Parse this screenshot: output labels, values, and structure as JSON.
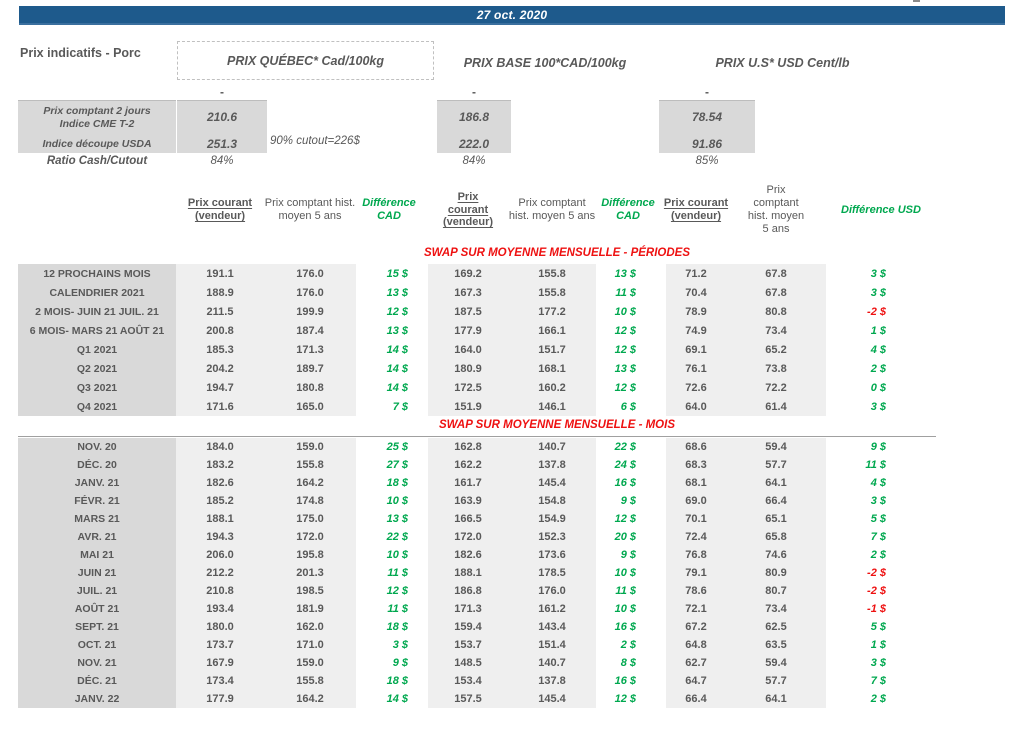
{
  "header": {
    "date": "27 oct. 2020",
    "title": "Prix indicatifs - Porc",
    "group_quebec": "PRIX QUÉBEC* Cad/100kg",
    "group_base": "PRIX BASE 100*CAD/100kg",
    "group_us": "PRIX U.S* USD Cent/lb"
  },
  "colors": {
    "accent_blue": "#1e5a8c",
    "positive_green": "#00a84f",
    "negative_red": "#ee1111",
    "text_gray": "#595959",
    "label_column_gray": "#d9d9d9",
    "value_column_gray": "#efefef"
  },
  "spot": {
    "placeholder_dash": "-",
    "row1_label_line1": "Prix comptant 2 jours",
    "row1_label_line2": "Indice CME T-2",
    "row1": {
      "quebec": "210.6",
      "base": "186.8",
      "us": "78.54"
    },
    "row2_label": "Indice découpe USDA",
    "row2_note": "90% cutout=226$",
    "row2": {
      "quebec": "251.3",
      "base": "222.0",
      "us": "91.86"
    },
    "row3_label": "Ratio Cash/Cutout",
    "row3": {
      "quebec": "84%",
      "base": "84%",
      "us": "85%"
    }
  },
  "columns": {
    "current": "Prix courant (vendeur)",
    "hist": "Prix comptant hist. moyen 5 ans",
    "diff_cad": "Différence CAD",
    "diff_usd": "Différence USD"
  },
  "sections": [
    {
      "title": "SWAP SUR MOYENNE MENSUELLE - PÉRIODES",
      "rows": [
        {
          "label": "12 PROCHAINS MOIS",
          "cells": [
            "191.1",
            "176.0",
            "15 $",
            "169.2",
            "155.8",
            "13 $",
            "71.2",
            "67.8",
            "3 $"
          ]
        },
        {
          "label": "CALENDRIER 2021",
          "cells": [
            "188.9",
            "176.0",
            "13 $",
            "167.3",
            "155.8",
            "11 $",
            "70.4",
            "67.8",
            "3 $"
          ]
        },
        {
          "label": "2 MOIS- JUIN 21 JUIL. 21",
          "cells": [
            "211.5",
            "199.9",
            "12 $",
            "187.5",
            "177.2",
            "10 $",
            "78.9",
            "80.8",
            "-2 $"
          ]
        },
        {
          "label": "6 MOIS- MARS 21 AOÛT 21",
          "cells": [
            "200.8",
            "187.4",
            "13 $",
            "177.9",
            "166.1",
            "12 $",
            "74.9",
            "73.4",
            "1 $"
          ]
        },
        {
          "label": "Q1 2021",
          "cells": [
            "185.3",
            "171.3",
            "14 $",
            "164.0",
            "151.7",
            "12 $",
            "69.1",
            "65.2",
            "4 $"
          ]
        },
        {
          "label": "Q2 2021",
          "cells": [
            "204.2",
            "189.7",
            "14 $",
            "180.9",
            "168.1",
            "13 $",
            "76.1",
            "73.8",
            "2 $"
          ]
        },
        {
          "label": "Q3 2021",
          "cells": [
            "194.7",
            "180.8",
            "14 $",
            "172.5",
            "160.2",
            "12 $",
            "72.6",
            "72.2",
            "0 $"
          ]
        },
        {
          "label": "Q4 2021",
          "cells": [
            "171.6",
            "165.0",
            "7 $",
            "151.9",
            "146.1",
            "6 $",
            "64.0",
            "61.4",
            "3 $"
          ]
        }
      ]
    },
    {
      "title": "SWAP SUR MOYENNE MENSUELLE - MOIS",
      "rows": [
        {
          "label": "NOV. 20",
          "cells": [
            "184.0",
            "159.0",
            "25 $",
            "162.8",
            "140.7",
            "22 $",
            "68.6",
            "59.4",
            "9 $"
          ]
        },
        {
          "label": "DÉC. 20",
          "cells": [
            "183.2",
            "155.8",
            "27 $",
            "162.2",
            "137.8",
            "24 $",
            "68.3",
            "57.7",
            "11 $"
          ]
        },
        {
          "label": "JANV. 21",
          "cells": [
            "182.6",
            "164.2",
            "18 $",
            "161.7",
            "145.4",
            "16 $",
            "68.1",
            "64.1",
            "4 $"
          ]
        },
        {
          "label": "FÉVR. 21",
          "cells": [
            "185.2",
            "174.8",
            "10 $",
            "163.9",
            "154.8",
            "9 $",
            "69.0",
            "66.4",
            "3 $"
          ]
        },
        {
          "label": "MARS 21",
          "cells": [
            "188.1",
            "175.0",
            "13 $",
            "166.5",
            "154.9",
            "12 $",
            "70.1",
            "65.1",
            "5 $"
          ]
        },
        {
          "label": "AVR. 21",
          "cells": [
            "194.3",
            "172.0",
            "22 $",
            "172.0",
            "152.3",
            "20 $",
            "72.4",
            "65.8",
            "7 $"
          ]
        },
        {
          "label": "MAI 21",
          "cells": [
            "206.0",
            "195.8",
            "10 $",
            "182.6",
            "173.6",
            "9 $",
            "76.8",
            "74.6",
            "2 $"
          ]
        },
        {
          "label": "JUIN 21",
          "cells": [
            "212.2",
            "201.3",
            "11 $",
            "188.1",
            "178.5",
            "10 $",
            "79.1",
            "80.9",
            "-2 $"
          ]
        },
        {
          "label": "JUIL. 21",
          "cells": [
            "210.8",
            "198.5",
            "12 $",
            "186.8",
            "176.0",
            "11 $",
            "78.6",
            "80.7",
            "-2 $"
          ]
        },
        {
          "label": "AOÛT 21",
          "cells": [
            "193.4",
            "181.9",
            "11 $",
            "171.3",
            "161.2",
            "10 $",
            "72.1",
            "73.4",
            "-1 $"
          ]
        },
        {
          "label": "SEPT. 21",
          "cells": [
            "180.0",
            "162.0",
            "18 $",
            "159.4",
            "143.4",
            "16 $",
            "67.2",
            "62.5",
            "5 $"
          ]
        },
        {
          "label": "OCT. 21",
          "cells": [
            "173.7",
            "171.0",
            "3 $",
            "153.7",
            "151.4",
            "2 $",
            "64.8",
            "63.5",
            "1 $"
          ]
        },
        {
          "label": "NOV. 21",
          "cells": [
            "167.9",
            "159.0",
            "9 $",
            "148.5",
            "140.7",
            "8 $",
            "62.7",
            "59.4",
            "3 $"
          ]
        },
        {
          "label": "DÉC. 21",
          "cells": [
            "173.4",
            "155.8",
            "18 $",
            "153.4",
            "137.8",
            "16 $",
            "64.7",
            "57.7",
            "7 $"
          ]
        },
        {
          "label": "JANV. 22",
          "cells": [
            "177.9",
            "164.2",
            "14 $",
            "157.5",
            "145.4",
            "12 $",
            "66.4",
            "64.1",
            "2 $"
          ]
        }
      ]
    }
  ]
}
